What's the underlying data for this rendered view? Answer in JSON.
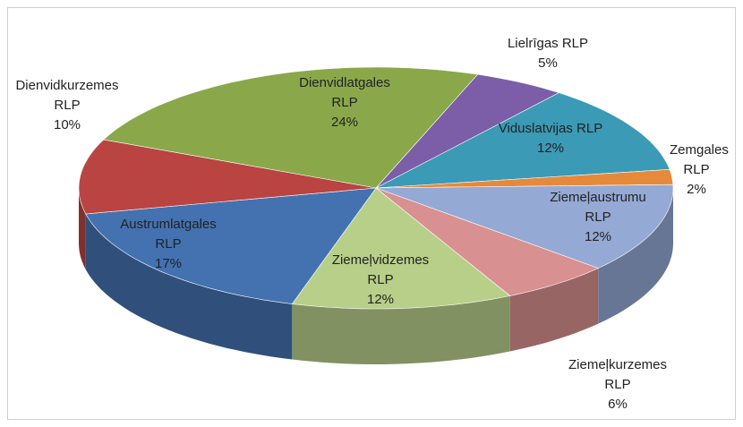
{
  "chart_data": {
    "type": "pie3d",
    "categories": [
      "Lielrīgas RLP",
      "Viduslatvijas RLP",
      "Zemgales RLP",
      "Ziemeļaustrumu RLP",
      "Ziemeļkurzemes RLP",
      "Ziemeļvidzemes RLP",
      "Austrumlatgales RLP",
      "Dienvidkurzemes RLP",
      "Dienvidlatgales RLP"
    ],
    "values": [
      5,
      12,
      2,
      12,
      6,
      12,
      17,
      10,
      24
    ],
    "value_labels": [
      "5%",
      "12%",
      "2%",
      "12%",
      "6%",
      "12%",
      "17%",
      "10%",
      "24%"
    ],
    "colors": [
      "#7b5ea7",
      "#3b9ab5",
      "#e58a3a",
      "#95a9d5",
      "#d99090",
      "#b8cf8a",
      "#4472b0",
      "#b94442",
      "#8aa84a"
    ]
  }
}
